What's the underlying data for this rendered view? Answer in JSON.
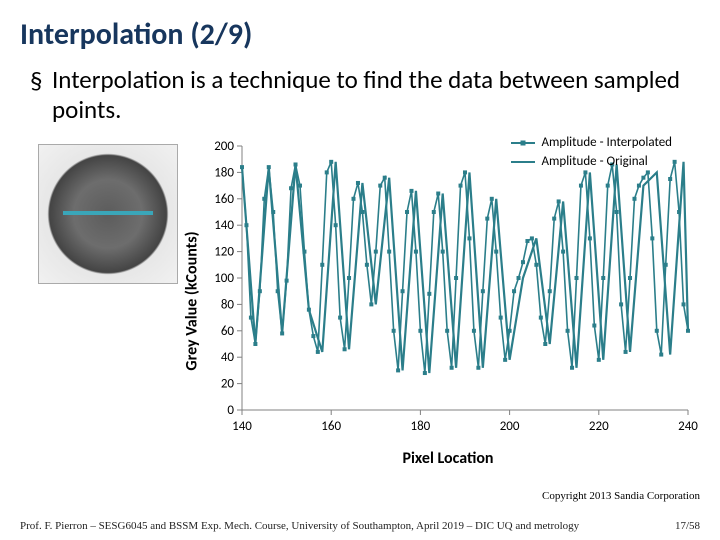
{
  "title": "Interpolation (2/9)",
  "bullet": {
    "marker": "§",
    "text": "Interpolation is a technique to find the data between sampled points."
  },
  "chart": {
    "type": "line",
    "ylabel": "Grey Value (kCounts)",
    "xlabel": "Pixel Location",
    "xlim": [
      140,
      240
    ],
    "ylim": [
      0,
      200
    ],
    "xtick_step": 20,
    "ytick_step": 20,
    "tick_fontsize": 13,
    "label_fontsize": 16,
    "line_color": "#2b7e8a",
    "axis_color": "#808080",
    "background_color": "#ffffff",
    "legend": {
      "position": "top-right",
      "entries": [
        {
          "label": "Amplitude - Interpolated",
          "marker": "square",
          "color": "#2b7e8a"
        },
        {
          "label": "Amplitude - Original",
          "marker": "none",
          "color": "#2b7e8a"
        }
      ]
    },
    "original": {
      "x": [
        140,
        143,
        146,
        149,
        152,
        155,
        158,
        161,
        164,
        167,
        170,
        173,
        176,
        179,
        182,
        185,
        188,
        191,
        194,
        197,
        200,
        203,
        206,
        209,
        212,
        215,
        218,
        221,
        224,
        227,
        230,
        233,
        236,
        239,
        240
      ],
      "y": [
        184,
        50,
        184,
        58,
        186,
        76,
        44,
        188,
        46,
        172,
        80,
        176,
        30,
        166,
        28,
        164,
        32,
        180,
        32,
        160,
        38,
        100,
        130,
        50,
        158,
        32,
        180,
        38,
        186,
        44,
        170,
        180,
        42,
        188,
        60
      ]
    },
    "interpolated": {
      "x": [
        140,
        141,
        142,
        143,
        144,
        145,
        146,
        147,
        148,
        149,
        150,
        151,
        152,
        153,
        154,
        155,
        156,
        157,
        158,
        159,
        160,
        161,
        162,
        163,
        164,
        165,
        166,
        167,
        168,
        169,
        170,
        171,
        172,
        173,
        174,
        175,
        176,
        177,
        178,
        179,
        180,
        181,
        182,
        183,
        184,
        185,
        186,
        187,
        188,
        189,
        190,
        191,
        192,
        193,
        194,
        195,
        196,
        197,
        198,
        199,
        200,
        201,
        202,
        203,
        204,
        205,
        206,
        207,
        208,
        209,
        210,
        211,
        212,
        213,
        214,
        215,
        216,
        217,
        218,
        219,
        220,
        221,
        222,
        223,
        224,
        225,
        226,
        227,
        228,
        229,
        230,
        231,
        232,
        233,
        234,
        235,
        236,
        237,
        238,
        239,
        240
      ],
      "y": [
        184,
        140,
        70,
        50,
        90,
        160,
        184,
        150,
        90,
        58,
        98,
        168,
        186,
        170,
        120,
        76,
        56,
        44,
        110,
        180,
        188,
        140,
        70,
        46,
        100,
        160,
        172,
        150,
        110,
        80,
        120,
        170,
        176,
        120,
        60,
        30,
        90,
        150,
        166,
        120,
        60,
        28,
        88,
        150,
        164,
        120,
        60,
        32,
        100,
        170,
        180,
        130,
        60,
        32,
        90,
        145,
        160,
        120,
        70,
        38,
        60,
        90,
        100,
        112,
        128,
        130,
        110,
        70,
        50,
        90,
        145,
        158,
        120,
        60,
        32,
        100,
        170,
        180,
        130,
        64,
        38,
        100,
        170,
        186,
        150,
        80,
        44,
        100,
        160,
        170,
        176,
        180,
        130,
        60,
        42,
        110,
        175,
        188,
        150,
        80,
        60
      ]
    }
  },
  "copyright": "Copyright 2013 Sandia Corporation",
  "footer": {
    "left": "Prof. F. Pierron – SESG6045 and BSSM Exp. Mech. Course, University of Southampton, April 2019 – DIC UQ and metrology",
    "right": "17/58"
  }
}
